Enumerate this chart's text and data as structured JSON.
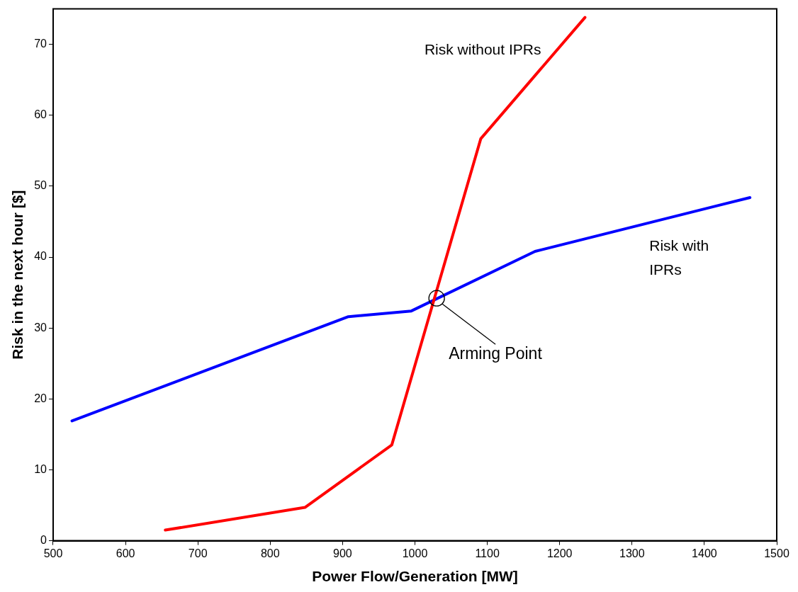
{
  "chart_data": {
    "type": "line",
    "xlabel": "Power Flow/Generation [MW]",
    "ylabel": "Risk in the next hour [$]",
    "xlim": [
      500,
      1500
    ],
    "xticks": [
      500,
      600,
      700,
      800,
      900,
      1000,
      1100,
      1200,
      1300,
      1400,
      1500
    ],
    "ylim": [
      0,
      75
    ],
    "yticks": [
      0,
      10,
      20,
      30,
      40,
      50,
      60,
      70
    ],
    "series": [
      {
        "name": "Risk without IPRs",
        "color": "#ff0000",
        "x": [
          655,
          848,
          968,
          1091,
          1235
        ],
        "values": [
          1.5,
          4.7,
          13.5,
          56.7,
          73.8
        ]
      },
      {
        "name": "Risk with IPRs",
        "color": "#0000ff",
        "x": [
          526,
          908,
          995,
          1166,
          1463
        ],
        "values": [
          16.9,
          31.6,
          32.4,
          40.8,
          48.4
        ]
      }
    ],
    "annotations": [
      {
        "text": "Arming Point",
        "x": 1030,
        "y": 34.2
      }
    ],
    "grid": false,
    "legend": false,
    "marker": "none",
    "line_style": "solid"
  }
}
